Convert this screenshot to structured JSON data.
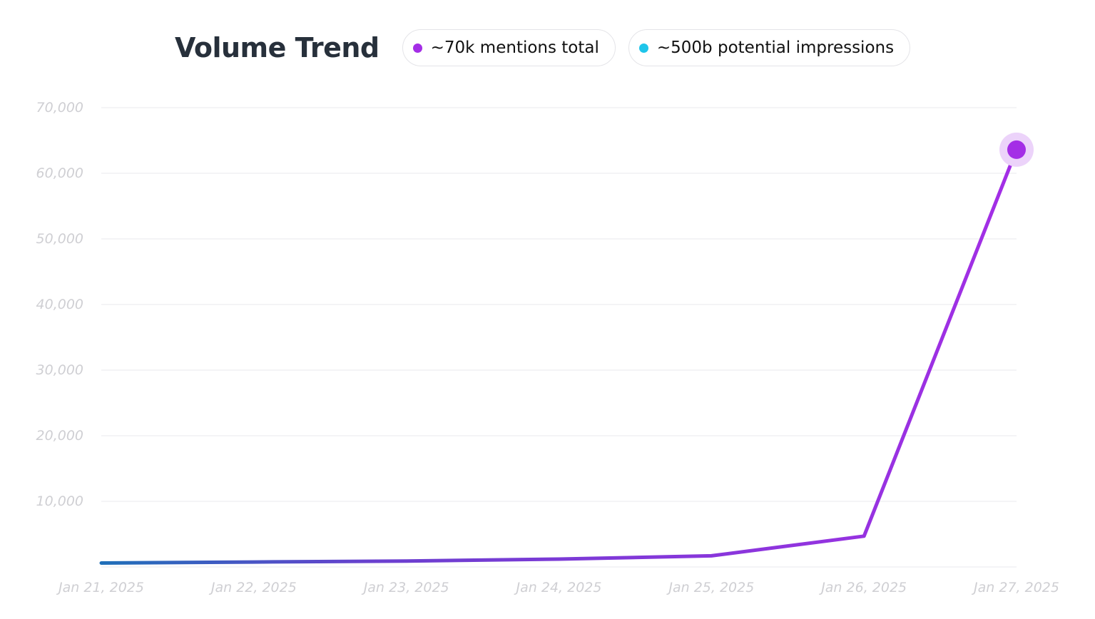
{
  "header": {
    "title": "Volume Trend",
    "legend": [
      {
        "label": "~70k mentions total",
        "color": "#a42ee6",
        "icon": "purple-dot-icon"
      },
      {
        "label": "~500b potential impressions",
        "color": "#1ec5ea",
        "icon": "cyan-dot-icon"
      }
    ]
  },
  "colors": {
    "line_start": "#1f6fb8",
    "line_end": "#a42ee6",
    "marker": "#a42ee6",
    "marker_halo": "#ecd3fa",
    "grid": "#e8e8ec",
    "tick": "#cfcfd3",
    "title": "#27303b"
  },
  "chart_data": {
    "type": "line",
    "title": "Volume Trend",
    "xlabel": "",
    "ylabel": "",
    "ylim": [
      0,
      70000
    ],
    "grid": true,
    "y_ticks": [
      {
        "value": 10000,
        "label": "10,000"
      },
      {
        "value": 20000,
        "label": "20,000"
      },
      {
        "value": 30000,
        "label": "30,000"
      },
      {
        "value": 40000,
        "label": "40,000"
      },
      {
        "value": 50000,
        "label": "50,000"
      },
      {
        "value": 60000,
        "label": "60,000"
      },
      {
        "value": 70000,
        "label": "70,000"
      }
    ],
    "categories": [
      "Jan 21, 2025",
      "Jan 22, 2025",
      "Jan 23, 2025",
      "Jan 24, 2025",
      "Jan 25, 2025",
      "Jan 26, 2025",
      "Jan 27, 2025"
    ],
    "series": [
      {
        "name": "mentions",
        "values": [
          600,
          750,
          900,
          1200,
          1700,
          4700,
          63600
        ]
      }
    ],
    "highlight_last_point": true
  }
}
